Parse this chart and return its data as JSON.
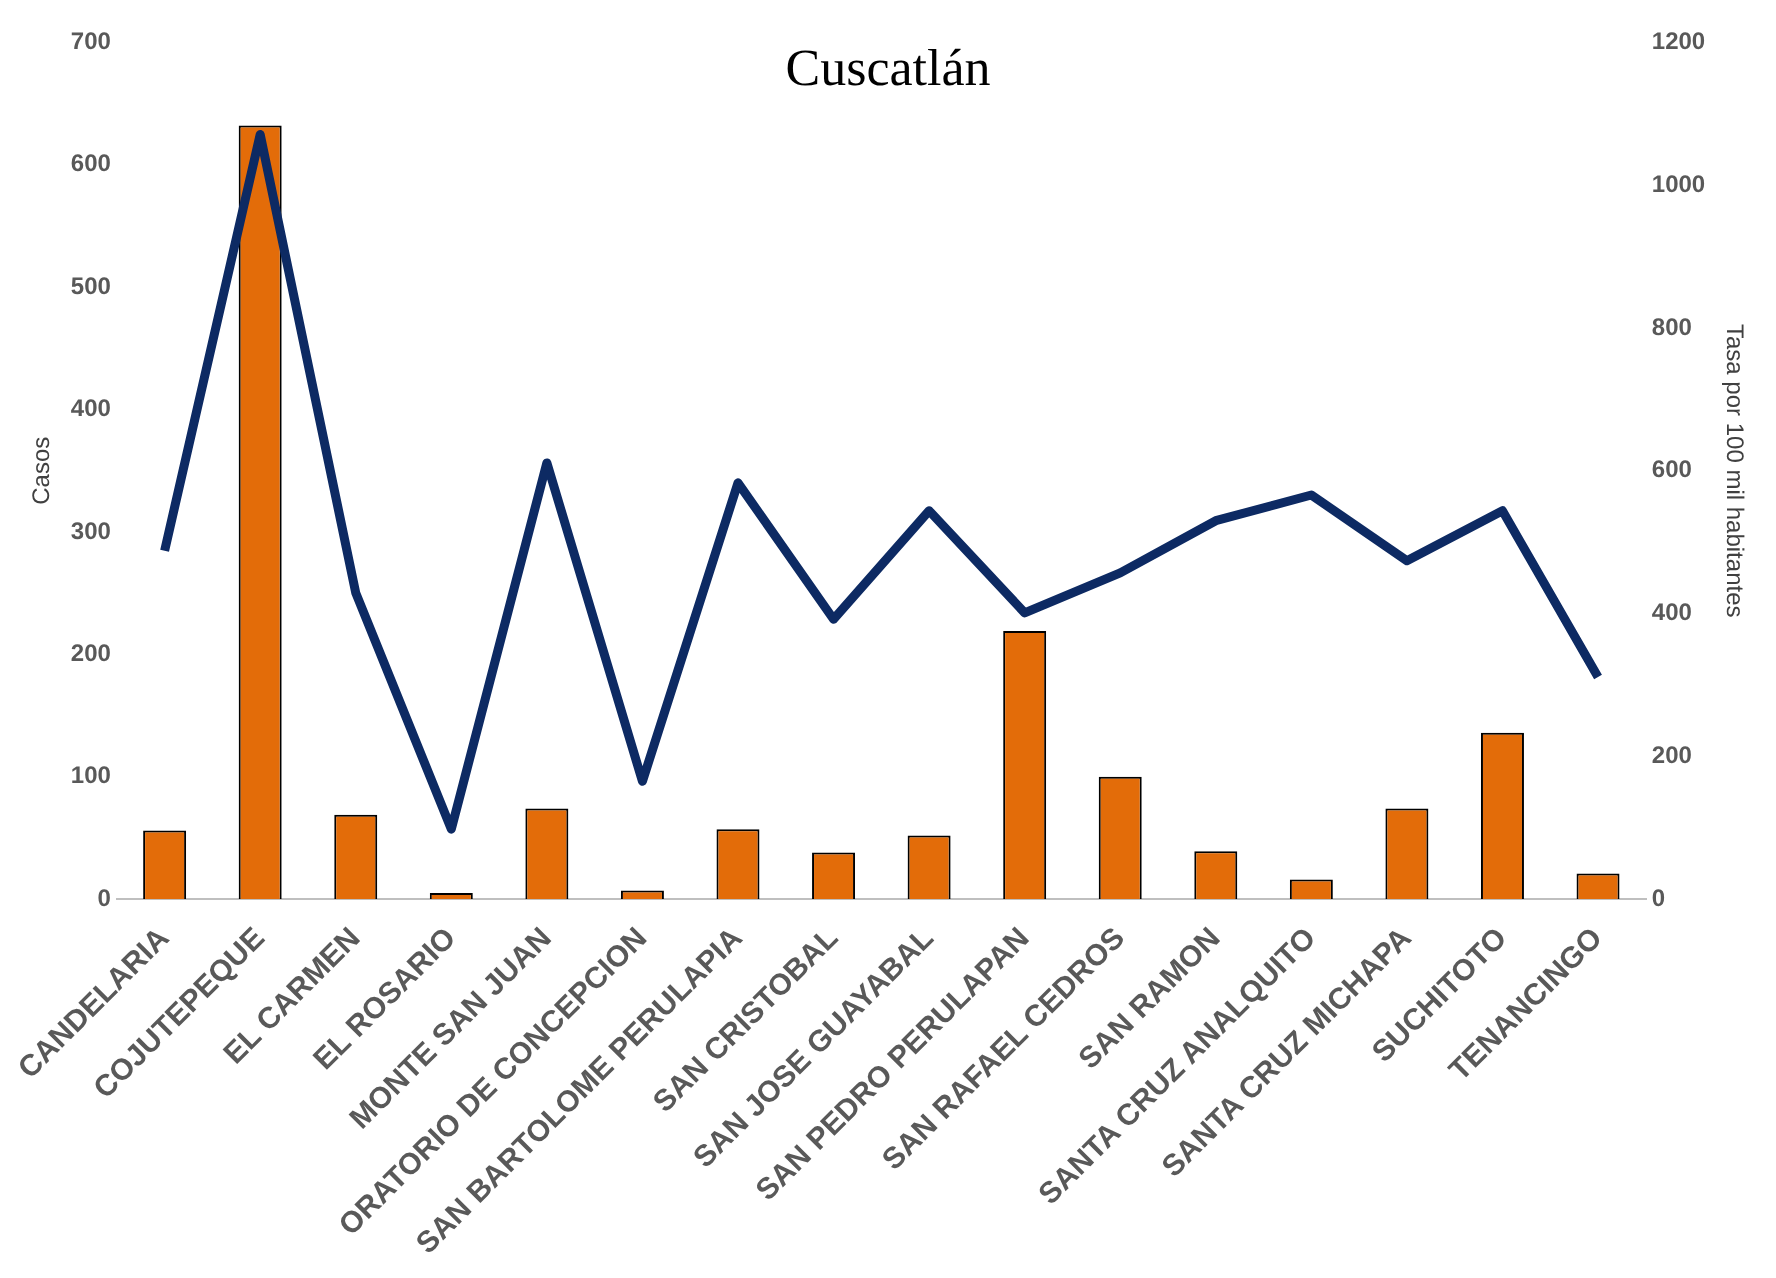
{
  "chart_data": {
    "type": "bar",
    "title": "Cuscatlán",
    "ylabel": "Casos",
    "y2label": "Tasa por 100 mil habitantes",
    "categories": [
      "CANDELARIA",
      "COJUTEPEQUE",
      "EL CARMEN",
      "EL ROSARIO",
      "MONTE SAN JUAN",
      "ORATORIO DE CONCEPCION",
      "SAN BARTOLOME PERULAPIA",
      "SAN CRISTOBAL",
      "SAN JOSE GUAYABAL",
      "SAN PEDRO PERULAPAN",
      "SAN RAFAEL CEDROS",
      "SAN RAMON",
      "SANTA CRUZ ANALQUITO",
      "SANTA CRUZ MICHAPA",
      "SUCHITOTO",
      "TENANCINGO"
    ],
    "series": [
      {
        "color": "#e36c09",
        "values": [
          56,
          632,
          69,
          5,
          74,
          7,
          57,
          38,
          52,
          219,
          100,
          39,
          16,
          74,
          136,
          21
        ]
      },
      {
        "type": "line",
        "axis": "y2",
        "color": "#0d2a63",
        "values": [
          488,
          1071,
          429,
          98,
          611,
          165,
          583,
          392,
          544,
          401,
          457,
          530,
          566,
          474,
          544,
          311
        ]
      }
    ],
    "ylim": [
      0,
      700
    ],
    "yticks": [
      0,
      100,
      200,
      300,
      400,
      500,
      600,
      700
    ],
    "y2lim": [
      0,
      1200
    ],
    "y2ticks": [
      0,
      200,
      400,
      600,
      800,
      1000,
      1200
    ],
    "grid": false,
    "legend": false,
    "marker": "none",
    "line_style": "solid"
  }
}
